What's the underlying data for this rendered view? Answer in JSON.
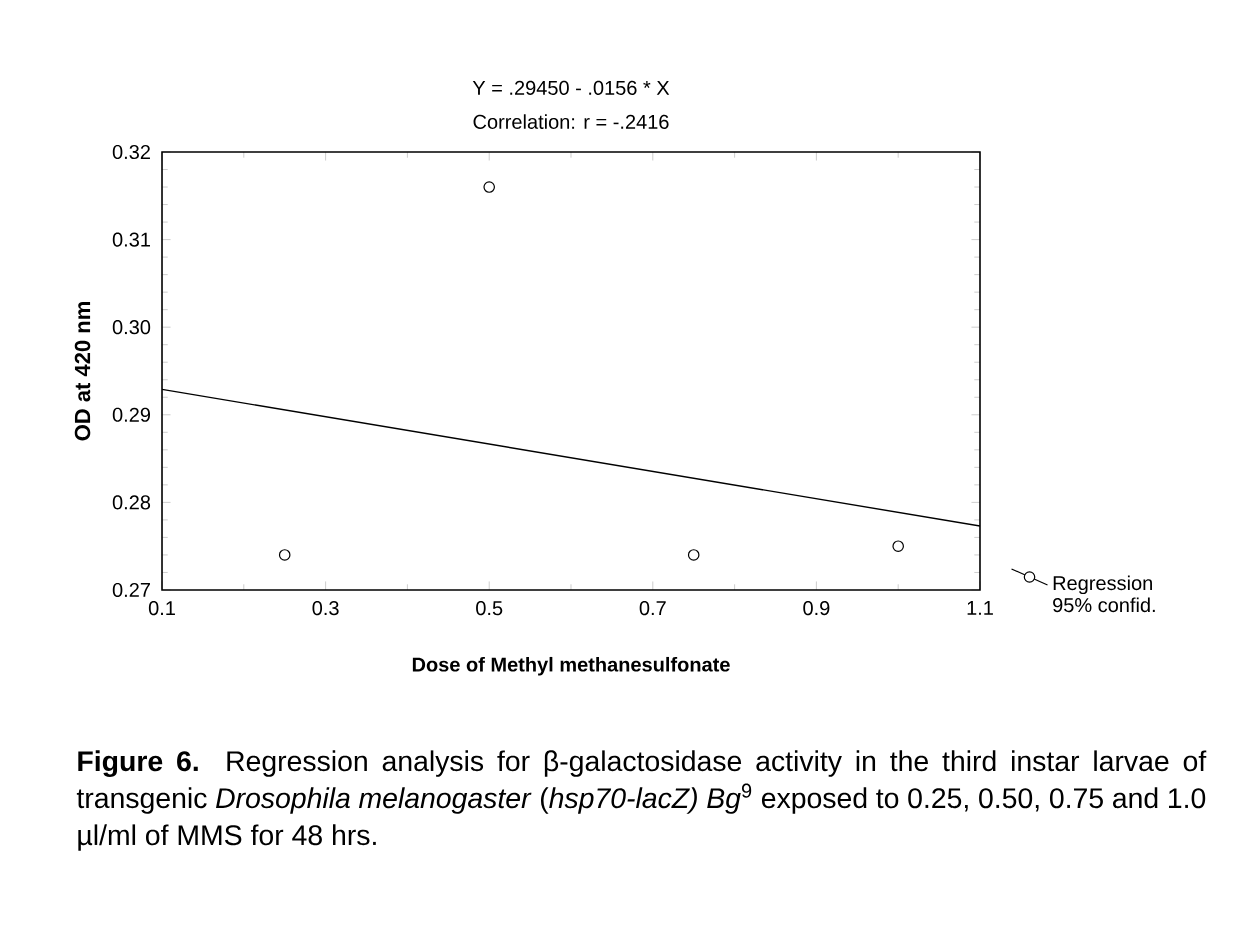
{
  "chart_data": {
    "type": "scatter",
    "title": "Y = .29450 - .0156 * X",
    "subtitle": "Correlation: r = -.2416",
    "xlabel": "Dose of Methyl methanesulfonate",
    "ylabel": "OD at 420 nm",
    "annotations": [
      "**Figure 6.** Regression analysis for β-galactosidase activity in the third instar larvae of transgenic *Drosophila melanogaster* (*hsp70-lacZ) Bg*$^{9}$ exposed to 0.25, 0.50, 0.75 and 1.0 µl/ml of MMS for 48 hrs."
    ],
    "series": [
      {
        "color": "#000000",
        "marker": "circle",
        "x": [
          0.25,
          0.5,
          0.75,
          1.0
        ],
        "values": [
          0.274,
          0.316,
          0.274,
          0.275
        ]
      },
      {
        "type": "line",
        "name": "Regression 95% confid.",
        "color": "#000000",
        "marker": "none",
        "x": [
          0.1,
          1.1
        ],
        "values": [
          0.2929,
          0.2773
        ]
      }
    ],
    "xlim": [
      0.1,
      1.1
    ],
    "ylim": [
      0.27,
      0.32
    ],
    "xticks": [
      0.1,
      0.3,
      0.5,
      0.7,
      0.9,
      1.1
    ],
    "yticks": [
      0.27,
      0.28,
      0.29,
      {
        "value": 0.3,
        "label": "0.30"
      },
      0.31,
      0.32
    ],
    "legend": "right",
    "grid": false
  }
}
